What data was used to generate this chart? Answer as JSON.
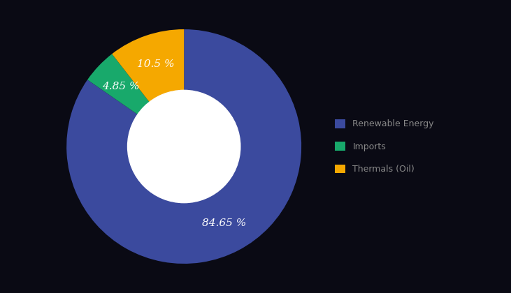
{
  "labels": [
    "Renewable Energy",
    "Imports",
    "Thermals (Oil)"
  ],
  "values": [
    84.65,
    4.85,
    10.5
  ],
  "colors": [
    "#3b4a9e",
    "#18a96b",
    "#f5a800"
  ],
  "autopct_labels": [
    "84.65 %",
    "4.85 %",
    "10.5 %"
  ],
  "startangle": 90,
  "donut_ratio": 0.52,
  "background_color": "#0a0a14",
  "title_color": "#4a52a0",
  "label_color": "#ffffff",
  "legend_label_color": "#888888",
  "title_fontsize": 20,
  "label_fontsize": 11
}
